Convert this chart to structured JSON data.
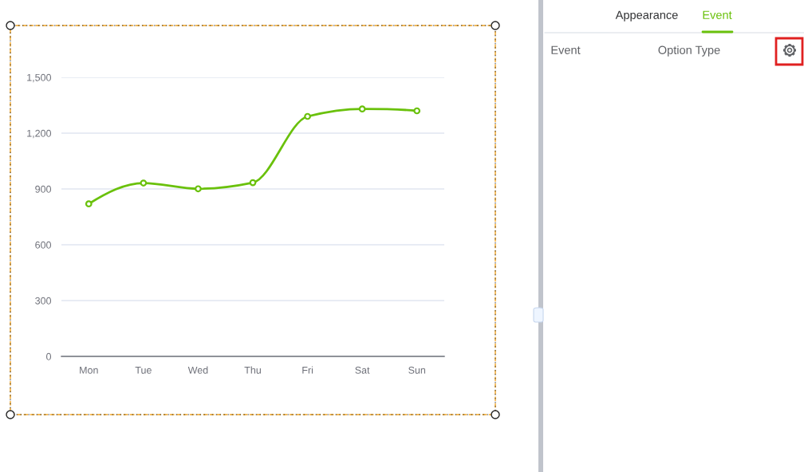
{
  "chart_data": {
    "type": "line",
    "categories": [
      "Mon",
      "Tue",
      "Wed",
      "Thu",
      "Fri",
      "Sat",
      "Sun"
    ],
    "series": [
      {
        "color": "#6ac10c",
        "values": [
          820,
          932,
          901,
          934,
          1290,
          1330,
          1320
        ]
      }
    ],
    "ylim": [
      0,
      1500
    ],
    "yticks": [
      0,
      300,
      600,
      900,
      {
        "value": 1200,
        "label": "1,200"
      },
      {
        "value": 1500,
        "label": "1,500"
      }
    ],
    "grid": "y",
    "marker": "circle",
    "line_style": "solid",
    "annotations": [
      "Appearance",
      "Event",
      "Event",
      "Option Type"
    ]
  }
}
